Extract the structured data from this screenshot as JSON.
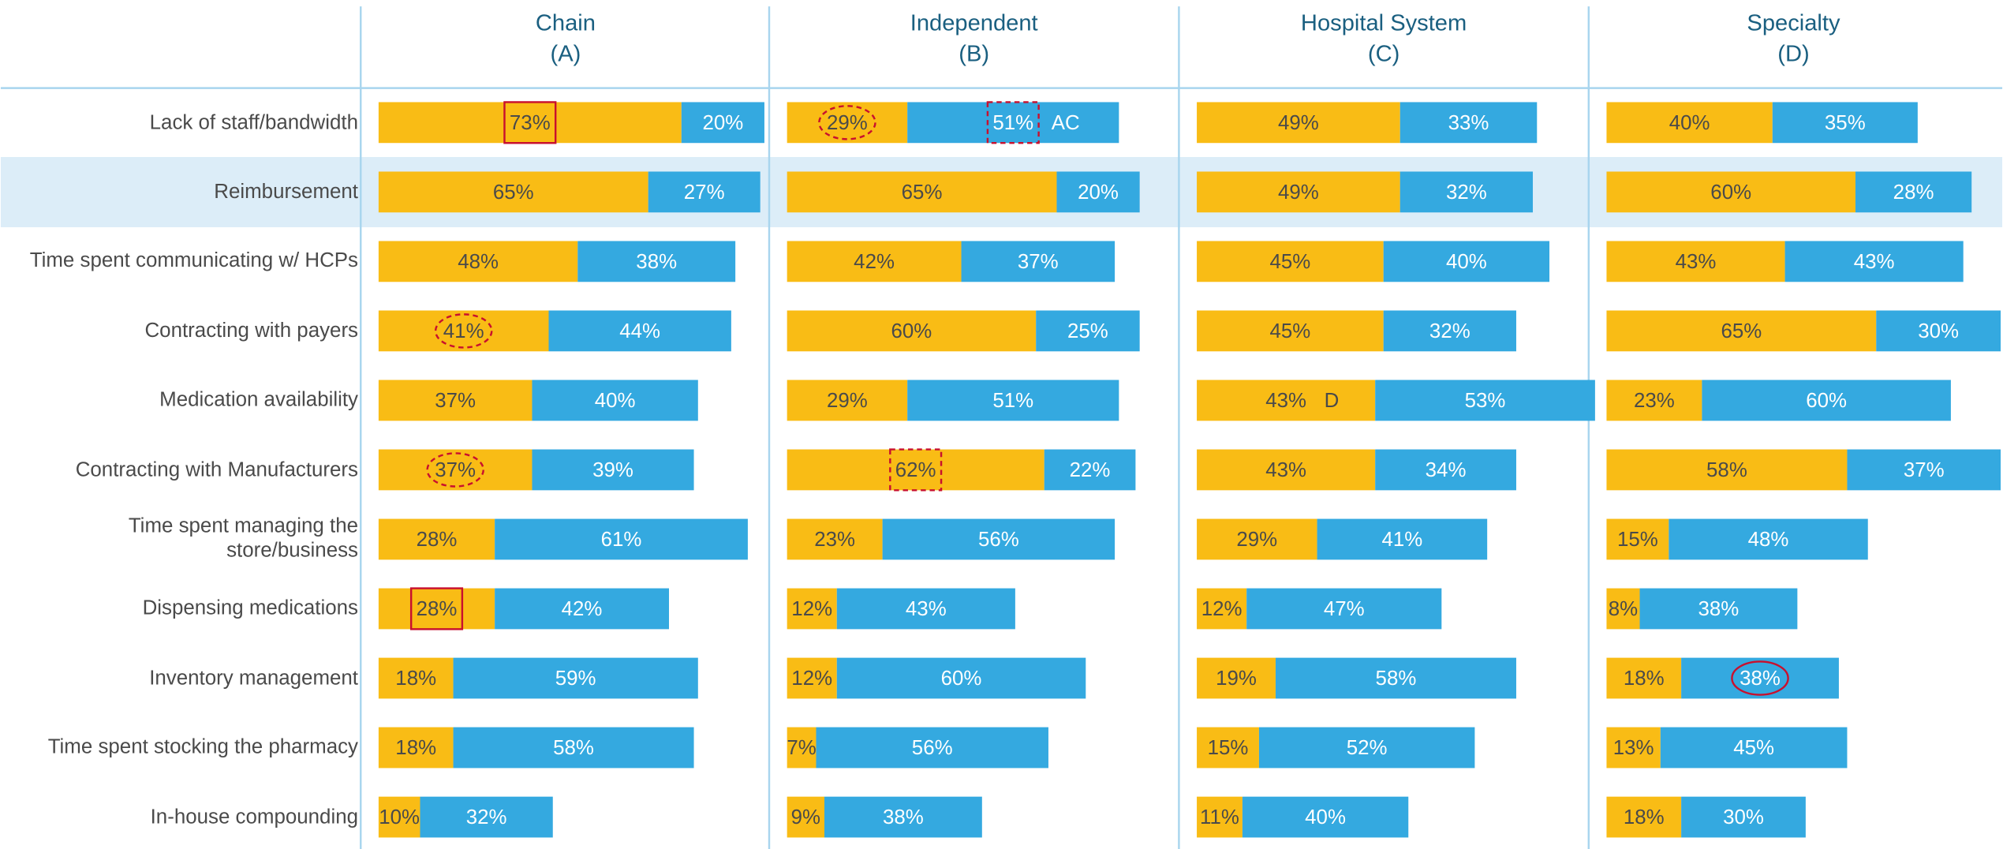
{
  "chart_data": [
    {
      "type": "bar",
      "title": "Chain",
      "subtitle": "(A)",
      "categories": [
        "Lack of staff/bandwidth",
        "Reimbursement",
        "Time spent communicating w/ HCPs",
        "Contracting with payers",
        "Medication availability",
        "Contracting with Manufacturers",
        "Time spent managing the\nstore/business",
        "Dispensing medications",
        "Inventory management",
        "Time spent stocking the pharmacy",
        "In-house compounding"
      ],
      "series": [
        {
          "color": "#f9bc15",
          "values": [
            73,
            65,
            48,
            41,
            37,
            37,
            28,
            28,
            18,
            18,
            10
          ],
          "value_labels": [
            "73%",
            "65%",
            "48%",
            "41%",
            "37%",
            "37%",
            "28%",
            "28%",
            "18%",
            "18%",
            "10%"
          ]
        },
        {
          "color": "#34a9e0",
          "values": [
            20,
            27,
            38,
            44,
            40,
            39,
            61,
            42,
            59,
            58,
            32
          ],
          "value_labels": [
            "20%",
            "27%",
            "38%",
            "44%",
            "40%",
            "39%",
            "61%",
            "42%",
            "59%",
            "58%",
            "32%"
          ]
        }
      ]
    },
    {
      "type": "bar",
      "title": "Independent",
      "subtitle": "(B)",
      "series": [
        {
          "color": "#f9bc15",
          "values": [
            29,
            65,
            42,
            60,
            29,
            62,
            23,
            12,
            12,
            7,
            9
          ],
          "value_labels": [
            "29%",
            "65%",
            "42%",
            "60%",
            "29%",
            "62%",
            "23%",
            "12%",
            "12%",
            "7%",
            "9%"
          ]
        },
        {
          "color": "#34a9e0",
          "values": [
            51,
            20,
            37,
            25,
            51,
            22,
            56,
            43,
            60,
            56,
            38
          ],
          "value_labels": [
            "51%",
            "20%",
            "37%",
            "25%",
            "51%",
            "22%",
            "56%",
            "43%",
            "60%",
            "56%",
            "38%"
          ],
          "letters": [
            "AC",
            null,
            null,
            null,
            null,
            null,
            null,
            null,
            null,
            null,
            null
          ]
        }
      ]
    },
    {
      "type": "bar",
      "title": "Hospital System",
      "subtitle": "(C)",
      "series": [
        {
          "color": "#f9bc15",
          "values": [
            49,
            49,
            45,
            45,
            43,
            43,
            29,
            12,
            19,
            15,
            11
          ],
          "value_labels": [
            "49%",
            "49%",
            "45%",
            "45%",
            "43%",
            "43%",
            "29%",
            "12%",
            "19%",
            "15%",
            "11%"
          ],
          "letters": [
            null,
            null,
            null,
            null,
            "D",
            null,
            null,
            null,
            null,
            null,
            null
          ]
        },
        {
          "color": "#34a9e0",
          "values": [
            33,
            32,
            40,
            32,
            53,
            34,
            41,
            47,
            58,
            52,
            40
          ],
          "value_labels": [
            "33%",
            "32%",
            "40%",
            "32%",
            "53%",
            "34%",
            "41%",
            "47%",
            "58%",
            "52%",
            "40%"
          ]
        }
      ]
    },
    {
      "type": "bar",
      "title": "Specialty",
      "subtitle": "(D)",
      "series": [
        {
          "color": "#f9bc15",
          "values": [
            40,
            60,
            43,
            65,
            23,
            58,
            15,
            8,
            18,
            13,
            18
          ],
          "value_labels": [
            "40%",
            "60%",
            "43%",
            "65%",
            "23%",
            "58%",
            "15%",
            "8%",
            "18%",
            "13%",
            "18%"
          ]
        },
        {
          "color": "#34a9e0",
          "values": [
            35,
            28,
            43,
            30,
            60,
            37,
            48,
            38,
            38,
            45,
            30
          ],
          "value_labels": [
            "35%",
            "28%",
            "43%",
            "30%",
            "60%",
            "37%",
            "48%",
            "38%",
            "38%",
            "45%",
            "30%"
          ]
        }
      ]
    }
  ]
}
